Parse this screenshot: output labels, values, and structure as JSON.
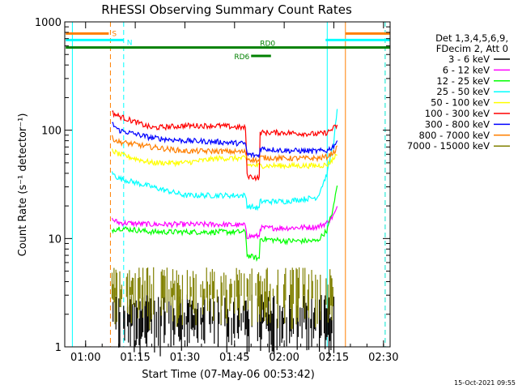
{
  "chart_data": {
    "type": "line",
    "title": "RHESSI Observing Summary Count Rates",
    "xlabel": "Start Time (07-May-06 00:53:42)",
    "ylabel": "Count Rate (s⁻¹ detector⁻¹)",
    "xlim_minutes": [
      53.7,
      152.0
    ],
    "ylim": [
      1,
      1000
    ],
    "yscale": "log",
    "x_ticks": [
      {
        "minute": 60,
        "label": "01:00"
      },
      {
        "minute": 75,
        "label": "01:15"
      },
      {
        "minute": 90,
        "label": "01:30"
      },
      {
        "minute": 105,
        "label": "01:45"
      },
      {
        "minute": 120,
        "label": "02:00"
      },
      {
        "minute": 135,
        "label": "02:15"
      },
      {
        "minute": 150,
        "label": "02:30"
      }
    ],
    "y_ticks": [
      {
        "value": 1,
        "label": "1"
      },
      {
        "value": 10,
        "label": "10"
      },
      {
        "value": 100,
        "label": "100"
      },
      {
        "value": 1000,
        "label": "1000"
      }
    ],
    "legend_header": [
      "Det 1,3,4,5,6,9,",
      "FDecim 2, Att 0"
    ],
    "flags": [
      {
        "label": "S",
        "color": "#ff7f00",
        "x0": 54.0,
        "x1": 67.0,
        "level": 780
      },
      {
        "label": "N",
        "color": "#00ffff",
        "x0": 54.0,
        "x1": 71.5,
        "level": 680
      },
      {
        "label": "RD0",
        "color": "#008000",
        "x0": 54.0,
        "x1": 152.0,
        "level": 580
      },
      {
        "label": "RD6",
        "color": "#008000",
        "x0": 110.0,
        "x1": 116.0,
        "level": 485
      }
    ],
    "right_flags": [
      {
        "color": "#ff7f00",
        "x0": 138.5,
        "x1": 152.0,
        "level": 780
      },
      {
        "color": "#00ffff",
        "x0": 132.5,
        "x1": 152.0,
        "level": 680
      }
    ],
    "vlines": [
      {
        "minute": 56.0,
        "color": "#00ffff",
        "dashed": false
      },
      {
        "minute": 67.5,
        "color": "#ff7f00",
        "dashed": true
      },
      {
        "minute": 71.5,
        "color": "#00ffff",
        "dashed": true
      },
      {
        "minute": 133.0,
        "color": "#00ffff",
        "dashed": false
      },
      {
        "minute": 138.5,
        "color": "#ff7f00",
        "dashed": false
      },
      {
        "minute": 150.5,
        "color": "#ff7f00",
        "dashed": true
      },
      {
        "minute": 150.5,
        "color": "#00ffff",
        "dashed": true
      }
    ],
    "series": [
      {
        "name": "3 - 6 keV",
        "color": "#000000",
        "style": "noise",
        "x": [
          68,
          72,
          80,
          100,
          120,
          130,
          135
        ],
        "y": [
          1.8,
          1.8,
          1.8,
          1.8,
          1.8,
          1.8,
          1.8
        ]
      },
      {
        "name": "6 - 12 keV",
        "color": "#ff00ff",
        "x": [
          68,
          70,
          80,
          90,
          100,
          108.5,
          108.6,
          112.5,
          112.6,
          120,
          130,
          133,
          135,
          136
        ],
        "y": [
          15,
          14,
          13.5,
          13.5,
          13.5,
          13.2,
          10.5,
          10.5,
          12.5,
          12.5,
          12.8,
          14,
          16.5,
          19
        ]
      },
      {
        "name": "12 - 25 keV",
        "color": "#00ff00",
        "x": [
          68,
          70,
          75,
          80,
          90,
          100,
          108.5,
          108.6,
          112.5,
          112.6,
          120,
          130,
          133,
          135,
          136
        ],
        "y": [
          12,
          12.5,
          12,
          11.5,
          11.5,
          11.5,
          11.5,
          7,
          6.5,
          10,
          9.5,
          9.5,
          12,
          20,
          32
        ]
      },
      {
        "name": "25 - 50 keV",
        "color": "#00ffff",
        "x": [
          68,
          70,
          80,
          90,
          100,
          108.5,
          108.6,
          112.5,
          112.6,
          120,
          130,
          133,
          135,
          136
        ],
        "y": [
          40,
          36,
          30,
          25,
          25,
          25,
          20,
          19,
          22,
          22,
          24,
          40,
          80,
          150
        ]
      },
      {
        "name": "50 - 100 keV",
        "color": "#ffff00",
        "x": [
          68,
          70,
          80,
          90,
          100,
          108.5,
          108.6,
          112.5,
          112.6,
          120,
          130,
          133,
          135,
          136
        ],
        "y": [
          65,
          60,
          50,
          50,
          55,
          55,
          48,
          47,
          47,
          47,
          47,
          48,
          55,
          62
        ]
      },
      {
        "name": "100 - 300 keV",
        "color": "#ff0000",
        "x": [
          68,
          70,
          80,
          90,
          100,
          108.5,
          108.6,
          112.5,
          112.6,
          120,
          130,
          133,
          135,
          136
        ],
        "y": [
          145,
          135,
          105,
          110,
          110,
          105,
          38,
          36,
          95,
          95,
          92,
          95,
          105,
          110
        ]
      },
      {
        "name": "300 - 800 keV",
        "color": "#0000ff",
        "x": [
          68,
          70,
          80,
          90,
          100,
          108.5,
          108.6,
          112.5,
          112.6,
          120,
          130,
          133,
          135,
          136
        ],
        "y": [
          115,
          100,
          85,
          80,
          78,
          75,
          60,
          58,
          68,
          65,
          64,
          65,
          72,
          80
        ]
      },
      {
        "name": "800 - 7000 keV",
        "color": "#ff7f00",
        "x": [
          68,
          70,
          80,
          90,
          100,
          108.5,
          108.6,
          112.5,
          112.6,
          120,
          130,
          133,
          135,
          136
        ],
        "y": [
          85,
          78,
          70,
          64,
          64,
          63,
          55,
          52,
          56,
          55,
          55,
          57,
          63,
          68
        ]
      },
      {
        "name": "7000 - 15000 keV",
        "color": "#808000",
        "style": "noise",
        "x": [
          68,
          80,
          100,
          120,
          135
        ],
        "y": [
          3.2,
          3.2,
          3.2,
          3.2,
          3.2
        ]
      }
    ]
  },
  "footer": {
    "date_stamp": "15-Oct-2021 09:55"
  }
}
